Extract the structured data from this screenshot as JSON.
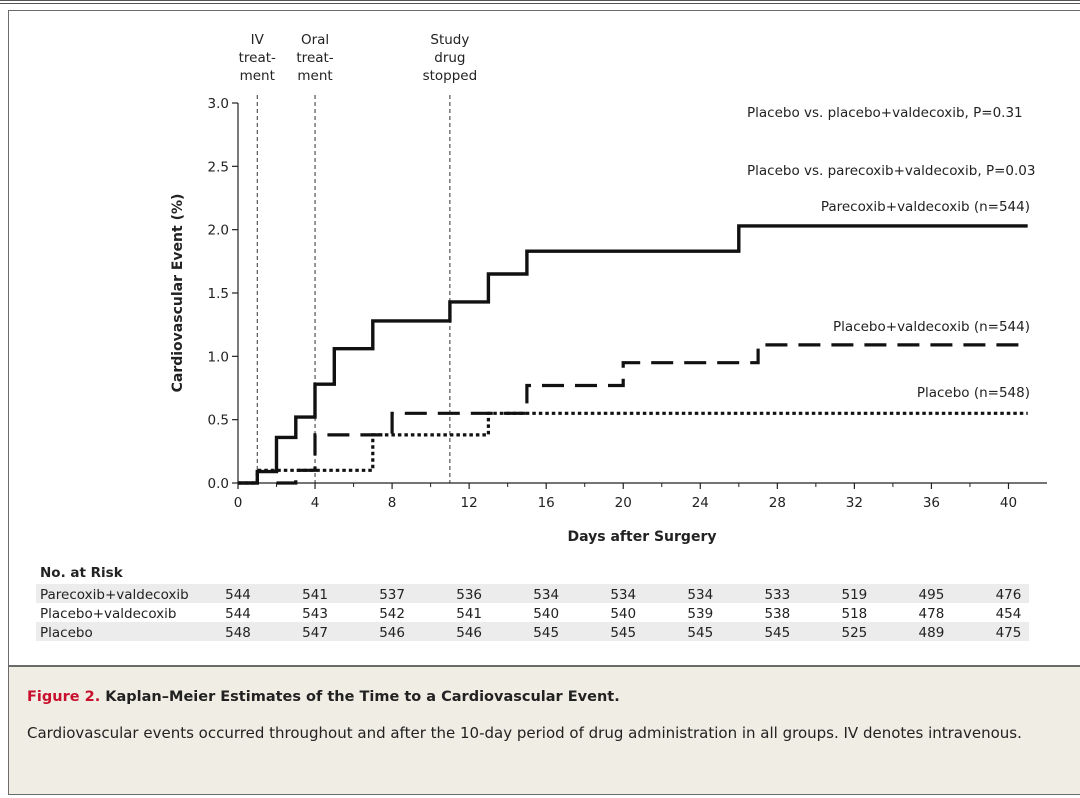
{
  "chart_data": {
    "type": "line",
    "title": "",
    "xlabel": "Days after Surgery",
    "ylabel": "Cardiovascular Event (%)",
    "xlim": [
      0,
      42
    ],
    "ylim": [
      0,
      3.0
    ],
    "x_ticks": [
      0,
      4,
      8,
      12,
      16,
      20,
      24,
      28,
      32,
      36,
      40
    ],
    "y_ticks": [
      "0.0",
      "0.5",
      "1.0",
      "1.5",
      "2.0",
      "2.5",
      "3.0"
    ],
    "grid": false,
    "step": true,
    "series": [
      {
        "name": "Parecoxib+valdecoxib (n=544)",
        "style": "solid",
        "points": [
          [
            0,
            0
          ],
          [
            1,
            0
          ],
          [
            1,
            0.09
          ],
          [
            2,
            0.09
          ],
          [
            2,
            0.36
          ],
          [
            3,
            0.36
          ],
          [
            3,
            0.52
          ],
          [
            4,
            0.52
          ],
          [
            4,
            0.78
          ],
          [
            5,
            0.78
          ],
          [
            5,
            1.06
          ],
          [
            7,
            1.06
          ],
          [
            7,
            1.28
          ],
          [
            11,
            1.28
          ],
          [
            11,
            1.43
          ],
          [
            13,
            1.43
          ],
          [
            13,
            1.65
          ],
          [
            15,
            1.65
          ],
          [
            15,
            1.83
          ],
          [
            26,
            1.83
          ],
          [
            26,
            2.03
          ],
          [
            41,
            2.03
          ]
        ]
      },
      {
        "name": "Placebo+valdecoxib (n=544)",
        "style": "dashed",
        "points": [
          [
            2,
            0
          ],
          [
            3,
            0
          ],
          [
            3,
            0.1
          ],
          [
            4,
            0.1
          ],
          [
            4,
            0.38
          ],
          [
            8,
            0.38
          ],
          [
            8,
            0.55
          ],
          [
            15,
            0.55
          ],
          [
            15,
            0.77
          ],
          [
            20,
            0.77
          ],
          [
            20,
            0.95
          ],
          [
            27,
            0.95
          ],
          [
            27,
            1.09
          ],
          [
            41,
            1.09
          ]
        ]
      },
      {
        "name": "Placebo (n=548)",
        "style": "dotted",
        "points": [
          [
            0,
            0
          ],
          [
            1,
            0
          ],
          [
            1,
            0.1
          ],
          [
            7,
            0.1
          ],
          [
            7,
            0.38
          ],
          [
            13,
            0.38
          ],
          [
            13,
            0.55
          ],
          [
            41,
            0.55
          ]
        ]
      }
    ],
    "vlines": [
      {
        "x": 1,
        "label": [
          "IV",
          "treat-",
          "ment"
        ]
      },
      {
        "x": 4,
        "label": [
          "Oral",
          "treat-",
          "ment"
        ]
      },
      {
        "x": 11,
        "label": [
          "Study",
          "drug",
          "stopped"
        ]
      }
    ],
    "annotations": [
      "Placebo vs. placebo+valdecoxib, P=0.31",
      "Placebo vs. parecoxib+valdecoxib, P=0.03"
    ]
  },
  "risk_table": {
    "title": "No. at Risk",
    "rows": [
      {
        "label": "Parecoxib+valdecoxib",
        "values": [
          "544",
          "541",
          "537",
          "536",
          "534",
          "534",
          "534",
          "533",
          "519",
          "495",
          "476"
        ]
      },
      {
        "label": "Placebo+valdecoxib",
        "values": [
          "544",
          "543",
          "542",
          "541",
          "540",
          "540",
          "539",
          "538",
          "518",
          "478",
          "454"
        ]
      },
      {
        "label": "Placebo",
        "values": [
          "548",
          "547",
          "546",
          "546",
          "545",
          "545",
          "545",
          "545",
          "525",
          "489",
          "475"
        ]
      }
    ]
  },
  "caption": {
    "figure_label": "Figure 2.",
    "title": "Kaplan–Meier Estimates of the Time to a Cardiovascular Event.",
    "body": "Cardiovascular events occurred throughout and after the 10-day period of drug administration in all groups. IV denotes intravenous."
  }
}
